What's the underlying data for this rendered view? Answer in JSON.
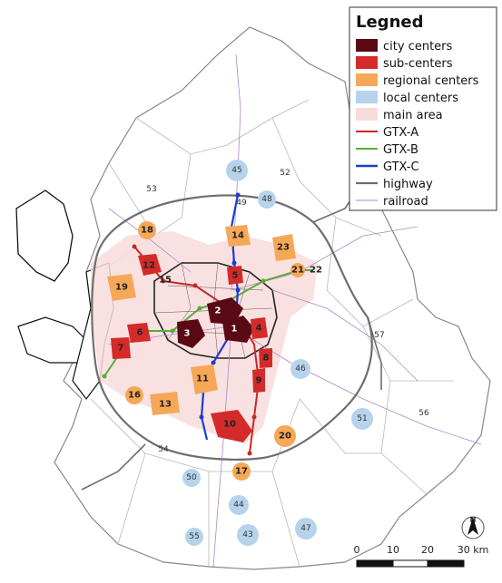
{
  "legend": {
    "title": "Legned",
    "items": [
      {
        "label": "city centers",
        "color": "#5a0a14",
        "kind": "fill"
      },
      {
        "label": "sub-centers",
        "color": "#d42a2a",
        "kind": "fill"
      },
      {
        "label": "regional centers",
        "color": "#f5a857",
        "kind": "fill"
      },
      {
        "label": "local centers",
        "color": "#b7d3ec",
        "kind": "fill"
      },
      {
        "label": "main area",
        "color": "#f8dcdc",
        "kind": "fill"
      },
      {
        "label": "GTX-A",
        "color": "#c62828",
        "kind": "line"
      },
      {
        "label": "GTX-B",
        "color": "#5aaa3c",
        "kind": "line"
      },
      {
        "label": "GTX-C",
        "color": "#1e3ccc",
        "kind": "line"
      },
      {
        "label": "highway",
        "color": "#6e6e6e",
        "kind": "line"
      },
      {
        "label": "railroad",
        "color": "#b088c8",
        "kind": "line"
      }
    ]
  },
  "scale": {
    "ticks": [
      "0",
      "10",
      "20",
      "30 km"
    ]
  },
  "north": {
    "label": "N"
  },
  "centers": {
    "city": [
      "1",
      "2",
      "3"
    ],
    "sub": [
      "4",
      "5",
      "6",
      "7",
      "8",
      "9",
      "10",
      "11",
      "12",
      "15"
    ],
    "regional": [
      "13",
      "14",
      "16",
      "17",
      "18",
      "19",
      "20",
      "21",
      "22",
      "23"
    ],
    "local": [
      "43",
      "44",
      "45",
      "46",
      "47",
      "48",
      "49",
      "50",
      "51",
      "52",
      "53",
      "54",
      "55",
      "56",
      "57"
    ]
  }
}
